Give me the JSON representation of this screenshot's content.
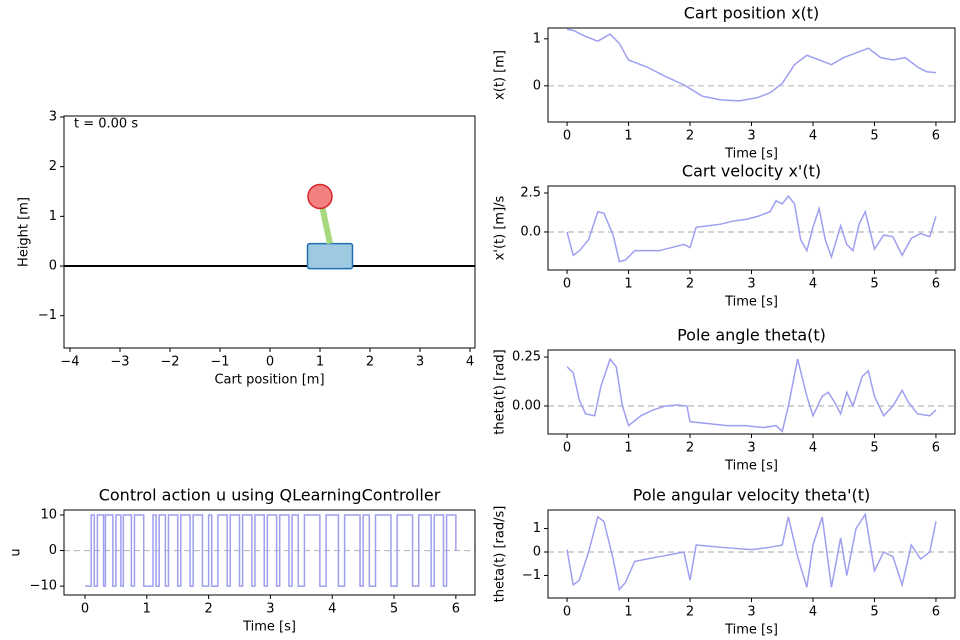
{
  "chart_data": [
    {
      "type": "scene",
      "xlabel": "Cart position [m]",
      "ylabel": "Height [m]",
      "annotation": "t = 0.00 s",
      "xlim": [
        -4.12,
        4.1
      ],
      "ylim": [
        -1.65,
        3.02
      ],
      "xticks": [
        {
          "value": -4,
          "label": "−4"
        },
        {
          "value": -3,
          "label": "−3"
        },
        {
          "value": -2,
          "label": "−2"
        },
        {
          "value": -1,
          "label": "−1"
        },
        0,
        1,
        2,
        3,
        4
      ],
      "yticks": [
        {
          "value": -1,
          "label": "−1"
        },
        0,
        1,
        2,
        3
      ],
      "cart_x": 1.2,
      "bob_x": 1.0,
      "bob_y": 1.4,
      "cart_color": "#9ecae1",
      "pole_color": "#a6d97e",
      "bob_color": "#f28080"
    },
    {
      "type": "line",
      "title": "Cart position x(t)",
      "xlabel": "Time [s]",
      "ylabel": "x(t) [m]",
      "xlim": [
        -0.31,
        6.31
      ],
      "ylim": [
        -0.77,
        1.23
      ],
      "xticks": [
        0,
        1,
        2,
        3,
        4,
        5,
        6
      ],
      "yticks": [
        0,
        1
      ],
      "hline": 0,
      "color": "#9f9ff0",
      "x": [
        0,
        0.1,
        0.3,
        0.5,
        0.7,
        0.85,
        1.0,
        1.3,
        1.6,
        1.9,
        2.2,
        2.5,
        2.8,
        3.1,
        3.3,
        3.5,
        3.7,
        3.9,
        4.1,
        4.3,
        4.5,
        4.7,
        4.9,
        5.1,
        5.3,
        5.5,
        5.7,
        5.85,
        6.0
      ],
      "values": [
        1.2,
        1.18,
        1.05,
        0.95,
        1.1,
        0.9,
        0.55,
        0.4,
        0.2,
        0.02,
        -0.22,
        -0.3,
        -0.32,
        -0.25,
        -0.15,
        0.05,
        0.45,
        0.65,
        0.55,
        0.45,
        0.6,
        0.7,
        0.8,
        0.6,
        0.55,
        0.6,
        0.4,
        0.3,
        0.28
      ]
    },
    {
      "type": "line",
      "title": "Cart velocity x'(t)",
      "xlabel": "Time [s]",
      "ylabel": "x'(t) [m]/s",
      "xlim": [
        -0.31,
        6.31
      ],
      "ylim": [
        -2.44,
        2.95
      ],
      "xticks": [
        0,
        1,
        2,
        3,
        4,
        5,
        6
      ],
      "yticks": [
        {
          "value": 0,
          "label": "0.0"
        },
        {
          "value": 2.5,
          "label": "2.5"
        }
      ],
      "hline": 0,
      "color": "#9f9ff0",
      "x": [
        0,
        0.1,
        0.2,
        0.35,
        0.5,
        0.6,
        0.75,
        0.85,
        0.95,
        1.1,
        1.3,
        1.5,
        1.7,
        1.9,
        2.0,
        2.1,
        2.3,
        2.5,
        2.7,
        2.9,
        3.1,
        3.3,
        3.4,
        3.5,
        3.6,
        3.7,
        3.8,
        3.9,
        4.0,
        4.1,
        4.2,
        4.3,
        4.45,
        4.55,
        4.65,
        4.75,
        4.85,
        5.0,
        5.15,
        5.3,
        5.45,
        5.6,
        5.75,
        5.9,
        6.0
      ],
      "values": [
        0,
        -1.5,
        -1.2,
        -0.5,
        1.3,
        1.2,
        -0.2,
        -1.9,
        -1.8,
        -1.2,
        -1.2,
        -1.2,
        -1.0,
        -0.8,
        -1.0,
        0.3,
        0.4,
        0.5,
        0.7,
        0.8,
        1.0,
        1.3,
        2.0,
        1.8,
        2.3,
        1.8,
        -0.5,
        -1.2,
        0.3,
        1.5,
        -0.5,
        -1.6,
        0.4,
        -0.8,
        -1.2,
        0.5,
        1.3,
        -1.1,
        -0.2,
        -0.3,
        -1.5,
        -0.4,
        -0.1,
        -0.3,
        1.0
      ]
    },
    {
      "type": "line",
      "title": "Pole angle theta(t)",
      "xlabel": "Time [s]",
      "ylabel": "theta(t) [rad]",
      "xlim": [
        -0.31,
        6.31
      ],
      "ylim": [
        -0.143,
        0.286
      ],
      "xticks": [
        0,
        1,
        2,
        3,
        4,
        5,
        6
      ],
      "yticks": [
        {
          "value": 0,
          "label": "0.00"
        },
        {
          "value": 0.25,
          "label": "0.25"
        }
      ],
      "hline": 0,
      "color": "#9f9ff0",
      "x": [
        0,
        0.1,
        0.2,
        0.3,
        0.45,
        0.55,
        0.7,
        0.8,
        0.9,
        1.0,
        1.2,
        1.4,
        1.6,
        1.8,
        1.95,
        2.0,
        2.3,
        2.6,
        2.9,
        3.2,
        3.4,
        3.5,
        3.6,
        3.75,
        3.9,
        4.0,
        4.15,
        4.25,
        4.35,
        4.45,
        4.55,
        4.65,
        4.8,
        4.9,
        5.0,
        5.15,
        5.3,
        5.45,
        5.55,
        5.7,
        5.9,
        6.0
      ],
      "values": [
        0.2,
        0.17,
        0.03,
        -0.04,
        -0.05,
        0.1,
        0.24,
        0.2,
        0.0,
        -0.1,
        -0.05,
        -0.02,
        0.0,
        0.005,
        0.0,
        -0.08,
        -0.09,
        -0.1,
        -0.1,
        -0.11,
        -0.1,
        -0.13,
        0.0,
        0.24,
        0.05,
        -0.05,
        0.05,
        0.07,
        0.02,
        -0.04,
        0.07,
        0.0,
        0.15,
        0.18,
        0.05,
        -0.05,
        0.0,
        0.08,
        0.02,
        -0.04,
        -0.05,
        -0.02
      ]
    },
    {
      "type": "line",
      "title": "Pole angular velocity theta'(t)",
      "xlabel": "Time [s]",
      "ylabel": "theta(t) [rad/s]",
      "xlim": [
        -0.31,
        6.31
      ],
      "ylim": [
        -1.96,
        1.79
      ],
      "xticks": [
        0,
        1,
        2,
        3,
        4,
        5,
        6
      ],
      "yticks": [
        {
          "value": -1,
          "label": "−1"
        },
        0,
        1
      ],
      "hline": 0,
      "color": "#9f9ff0",
      "x": [
        0,
        0.1,
        0.2,
        0.35,
        0.5,
        0.6,
        0.75,
        0.85,
        0.95,
        1.1,
        1.3,
        1.5,
        1.7,
        1.9,
        2.0,
        2.1,
        2.5,
        3.0,
        3.3,
        3.5,
        3.6,
        3.75,
        3.9,
        4.0,
        4.15,
        4.3,
        4.45,
        4.55,
        4.7,
        4.85,
        5.0,
        5.15,
        5.3,
        5.45,
        5.6,
        5.75,
        5.9,
        6.0
      ],
      "values": [
        0.1,
        -1.4,
        -1.2,
        0,
        1.5,
        1.3,
        -0.3,
        -1.6,
        -1.3,
        -0.4,
        -0.3,
        -0.2,
        -0.1,
        0,
        -1.2,
        0.3,
        0.2,
        0.1,
        0.2,
        0.3,
        1.5,
        -0.2,
        -1.5,
        0.3,
        1.5,
        -1.5,
        0.6,
        -1.0,
        1.0,
        1.6,
        -0.8,
        0,
        -0.2,
        -1.4,
        0.3,
        -0.3,
        0.0,
        1.3
      ]
    },
    {
      "type": "line",
      "title": "Control action u using QLearningController",
      "xlabel": "Time [s]",
      "ylabel": "u",
      "drawstyle": "steps-post",
      "xlim": [
        -0.34,
        6.31
      ],
      "ylim": [
        -12.5,
        11.4
      ],
      "xticks": [
        0,
        1,
        2,
        3,
        4,
        5,
        6
      ],
      "yticks": [
        {
          "value": -10,
          "label": "−10"
        },
        0,
        10
      ],
      "hline": 0,
      "color": "#9f9ff0",
      "x": [
        0,
        0.1,
        0.15,
        0.2,
        0.3,
        0.33,
        0.45,
        0.5,
        0.58,
        0.62,
        0.75,
        0.8,
        0.95,
        1.1,
        1.15,
        1.2,
        1.3,
        1.35,
        1.5,
        1.55,
        1.7,
        1.75,
        1.9,
        2.0,
        2.05,
        2.15,
        2.3,
        2.35,
        2.5,
        2.55,
        2.7,
        2.75,
        2.9,
        2.95,
        3.1,
        3.15,
        3.3,
        3.35,
        3.45,
        3.55,
        3.8,
        3.9,
        4.1,
        4.2,
        4.45,
        4.5,
        4.6,
        4.7,
        4.95,
        5.05,
        5.3,
        5.4,
        5.6,
        5.65,
        5.8,
        5.85,
        6.0
      ],
      "values": [
        -10,
        10,
        -10,
        10,
        -10,
        10,
        -10,
        10,
        -10,
        10,
        -10,
        10,
        -10,
        10,
        -10,
        10,
        -10,
        10,
        -10,
        10,
        -10,
        10,
        -10,
        10,
        -10,
        10,
        -10,
        10,
        -10,
        10,
        -10,
        10,
        -10,
        10,
        -10,
        10,
        -10,
        10,
        -10,
        10,
        -10,
        10,
        -10,
        10,
        -10,
        10,
        -10,
        10,
        -10,
        10,
        -10,
        10,
        -10,
        10,
        -10,
        10,
        0
      ]
    }
  ]
}
